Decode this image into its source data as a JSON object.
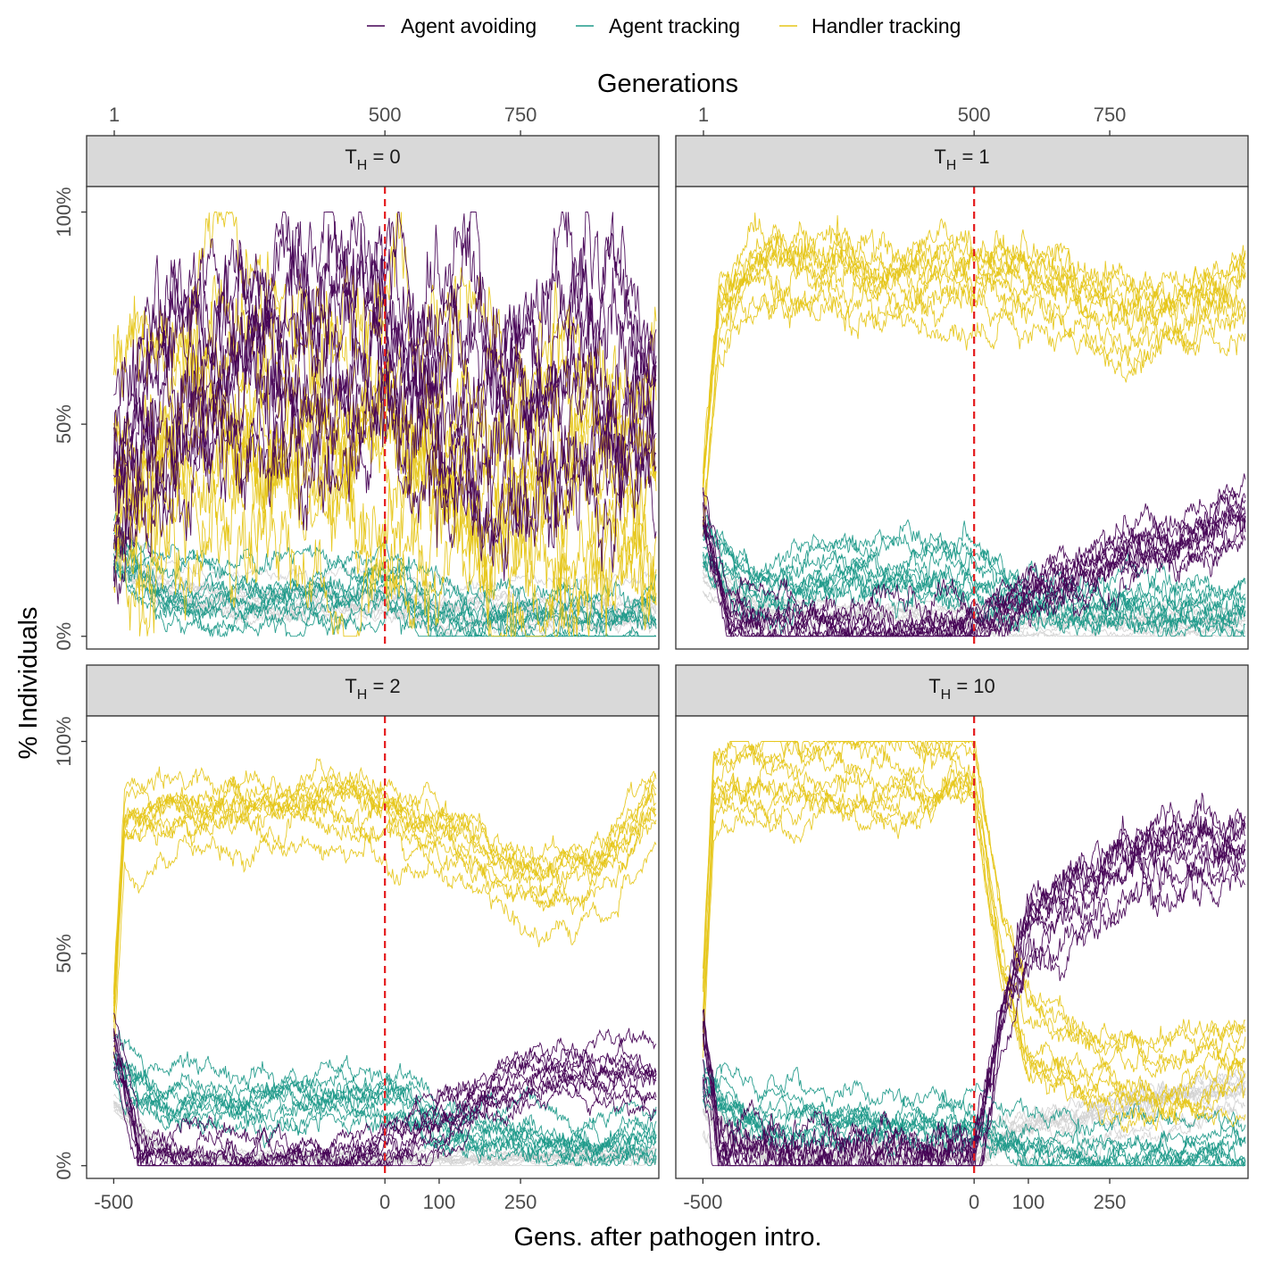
{
  "colors": {
    "Agent avoiding": "#440154",
    "Agent tracking": "#1f9a8a",
    "Handler tracking": "#e6c619",
    "other": "#d3d3d3",
    "intro_line": "#e41a1c"
  },
  "legend": {
    "items": [
      {
        "label": "Agent avoiding",
        "color": "#440154"
      },
      {
        "label": "Agent tracking",
        "color": "#1f9a8a"
      },
      {
        "label": "Handler tracking",
        "color": "#e6c619"
      }
    ]
  },
  "chart_data": {
    "type": "line",
    "facet_var": "T_H",
    "xlabel_bottom": "Gens. after pathogen intro.",
    "xlabel_top": "Generations",
    "ylabel": "% Individuals",
    "x_ticks_bottom": [
      "-500",
      "0",
      "100",
      "250"
    ],
    "x_tick_values_bottom": [
      -500,
      0,
      100,
      250
    ],
    "x_ticks_top": [
      "1",
      "500",
      "750"
    ],
    "x_tick_values_top": [
      -499,
      0,
      250
    ],
    "y_ticks": [
      "0%",
      "50%",
      "100%"
    ],
    "y_tick_values": [
      0,
      0.5,
      1.0
    ],
    "xlim": [
      -550,
      505
    ],
    "ylim": [
      -0.03,
      1.06
    ],
    "vline_x": 0,
    "replicates_per_strategy": 10,
    "panels": [
      {
        "strip": {
          "base": "T",
          "sub": "H",
          "rest": " = 0"
        },
        "series": [
          {
            "name": "Agent avoiding",
            "x": [
              -500,
              -400,
              -300,
              -200,
              -100,
              0,
              100,
              200,
              300,
              400,
              500
            ],
            "mean": [
              0.35,
              0.55,
              0.62,
              0.68,
              0.7,
              0.72,
              0.55,
              0.5,
              0.55,
              0.6,
              0.55
            ],
            "spread": 0.3
          },
          {
            "name": "Handler tracking",
            "x": [
              -500,
              -400,
              -300,
              -200,
              -100,
              0,
              100,
              200,
              300,
              400,
              500
            ],
            "mean": [
              0.4,
              0.5,
              0.52,
              0.5,
              0.48,
              0.48,
              0.45,
              0.4,
              0.35,
              0.35,
              0.35
            ],
            "spread": 0.3
          },
          {
            "name": "Agent tracking",
            "x": [
              -500,
              -400,
              -300,
              -200,
              -100,
              0,
              100,
              200,
              300,
              400,
              500
            ],
            "mean": [
              0.2,
              0.1,
              0.09,
              0.09,
              0.1,
              0.12,
              0.05,
              0.04,
              0.04,
              0.04,
              0.04
            ],
            "spread": 0.06
          },
          {
            "name": "other",
            "x": [
              -500,
              -400,
              -300,
              -200,
              -100,
              0,
              100,
              200,
              300,
              400,
              500
            ],
            "mean": [
              0.2,
              0.1,
              0.08,
              0.08,
              0.08,
              0.08,
              0.06,
              0.06,
              0.06,
              0.06,
              0.06
            ],
            "spread": 0.04
          }
        ]
      },
      {
        "strip": {
          "base": "T",
          "sub": "H",
          "rest": " = 1"
        },
        "series": [
          {
            "name": "Handler tracking",
            "x": [
              -500,
              -470,
              -400,
              -300,
              -200,
              -100,
              0,
              100,
              200,
              300,
              400,
              500
            ],
            "mean": [
              0.3,
              0.75,
              0.85,
              0.84,
              0.82,
              0.82,
              0.83,
              0.8,
              0.75,
              0.72,
              0.75,
              0.8
            ],
            "spread": 0.09
          },
          {
            "name": "Agent tracking",
            "x": [
              -500,
              -400,
              -300,
              -200,
              -100,
              0,
              100,
              200,
              300,
              400,
              500
            ],
            "mean": [
              0.2,
              0.1,
              0.12,
              0.14,
              0.14,
              0.14,
              0.06,
              0.06,
              0.06,
              0.05,
              0.05
            ],
            "spread": 0.07
          },
          {
            "name": "Agent avoiding",
            "x": [
              -500,
              -450,
              -400,
              -300,
              -200,
              -100,
              0,
              100,
              200,
              300,
              400,
              500
            ],
            "mean": [
              0.3,
              0.05,
              0.03,
              0.02,
              0.02,
              0.02,
              0.02,
              0.1,
              0.15,
              0.2,
              0.22,
              0.3
            ],
            "spread": 0.08
          },
          {
            "name": "other",
            "x": [
              -500,
              -400,
              -300,
              -200,
              -100,
              0,
              100,
              200,
              300,
              400,
              500
            ],
            "mean": [
              0.15,
              0.06,
              0.05,
              0.05,
              0.05,
              0.05,
              0.04,
              0.04,
              0.04,
              0.04,
              0.04
            ],
            "spread": 0.03
          }
        ]
      },
      {
        "strip": {
          "base": "T",
          "sub": "H",
          "rest": " = 2"
        },
        "series": [
          {
            "name": "Handler tracking",
            "x": [
              -500,
              -480,
              -400,
              -300,
              -200,
              -100,
              0,
              100,
              200,
              300,
              400,
              500
            ],
            "mean": [
              0.35,
              0.8,
              0.82,
              0.82,
              0.83,
              0.84,
              0.82,
              0.78,
              0.7,
              0.65,
              0.7,
              0.85
            ],
            "spread": 0.07
          },
          {
            "name": "Agent tracking",
            "x": [
              -500,
              -400,
              -300,
              -200,
              -100,
              0,
              100,
              200,
              300,
              400,
              500
            ],
            "mean": [
              0.25,
              0.15,
              0.16,
              0.17,
              0.17,
              0.17,
              0.1,
              0.08,
              0.07,
              0.06,
              0.07
            ],
            "spread": 0.06
          },
          {
            "name": "Agent avoiding",
            "x": [
              -500,
              -450,
              -400,
              -300,
              -200,
              -100,
              0,
              100,
              200,
              300,
              400,
              500
            ],
            "mean": [
              0.3,
              0.02,
              0.01,
              0.01,
              0.01,
              0.01,
              0.02,
              0.1,
              0.18,
              0.22,
              0.22,
              0.2
            ],
            "spread": 0.06
          },
          {
            "name": "other",
            "x": [
              -500,
              -400,
              -300,
              -200,
              -100,
              0,
              100,
              200,
              300,
              400,
              500
            ],
            "mean": [
              0.15,
              0.03,
              0.02,
              0.02,
              0.02,
              0.02,
              0.02,
              0.02,
              0.02,
              0.03,
              0.03
            ],
            "spread": 0.02
          }
        ]
      },
      {
        "strip": {
          "base": "T",
          "sub": "H",
          "rest": " = 10"
        },
        "series": [
          {
            "name": "Handler tracking",
            "x": [
              -500,
              -480,
              -400,
              -300,
              -200,
              -100,
              0,
              50,
              100,
              200,
              300,
              400,
              500
            ],
            "mean": [
              0.35,
              0.88,
              0.9,
              0.9,
              0.9,
              0.9,
              0.92,
              0.5,
              0.3,
              0.22,
              0.2,
              0.2,
              0.25
            ],
            "spread": 0.07
          },
          {
            "name": "Agent avoiding",
            "x": [
              -500,
              -470,
              -400,
              -300,
              -200,
              -100,
              0,
              50,
              100,
              200,
              300,
              400,
              500
            ],
            "mean": [
              0.3,
              0.02,
              0.01,
              0.01,
              0.01,
              0.01,
              0.01,
              0.35,
              0.55,
              0.65,
              0.72,
              0.73,
              0.75
            ],
            "spread": 0.1
          },
          {
            "name": "Agent tracking",
            "x": [
              -500,
              -400,
              -300,
              -200,
              -100,
              0,
              100,
              200,
              300,
              400,
              500
            ],
            "mean": [
              0.2,
              0.12,
              0.11,
              0.11,
              0.11,
              0.12,
              0.04,
              0.04,
              0.04,
              0.04,
              0.04
            ],
            "spread": 0.06
          },
          {
            "name": "other",
            "x": [
              -500,
              -400,
              -300,
              -200,
              -100,
              0,
              100,
              200,
              300,
              400,
              500
            ],
            "mean": [
              0.15,
              0.03,
              0.02,
              0.02,
              0.02,
              0.02,
              0.1,
              0.12,
              0.15,
              0.18,
              0.2
            ],
            "spread": 0.05
          }
        ]
      }
    ]
  }
}
